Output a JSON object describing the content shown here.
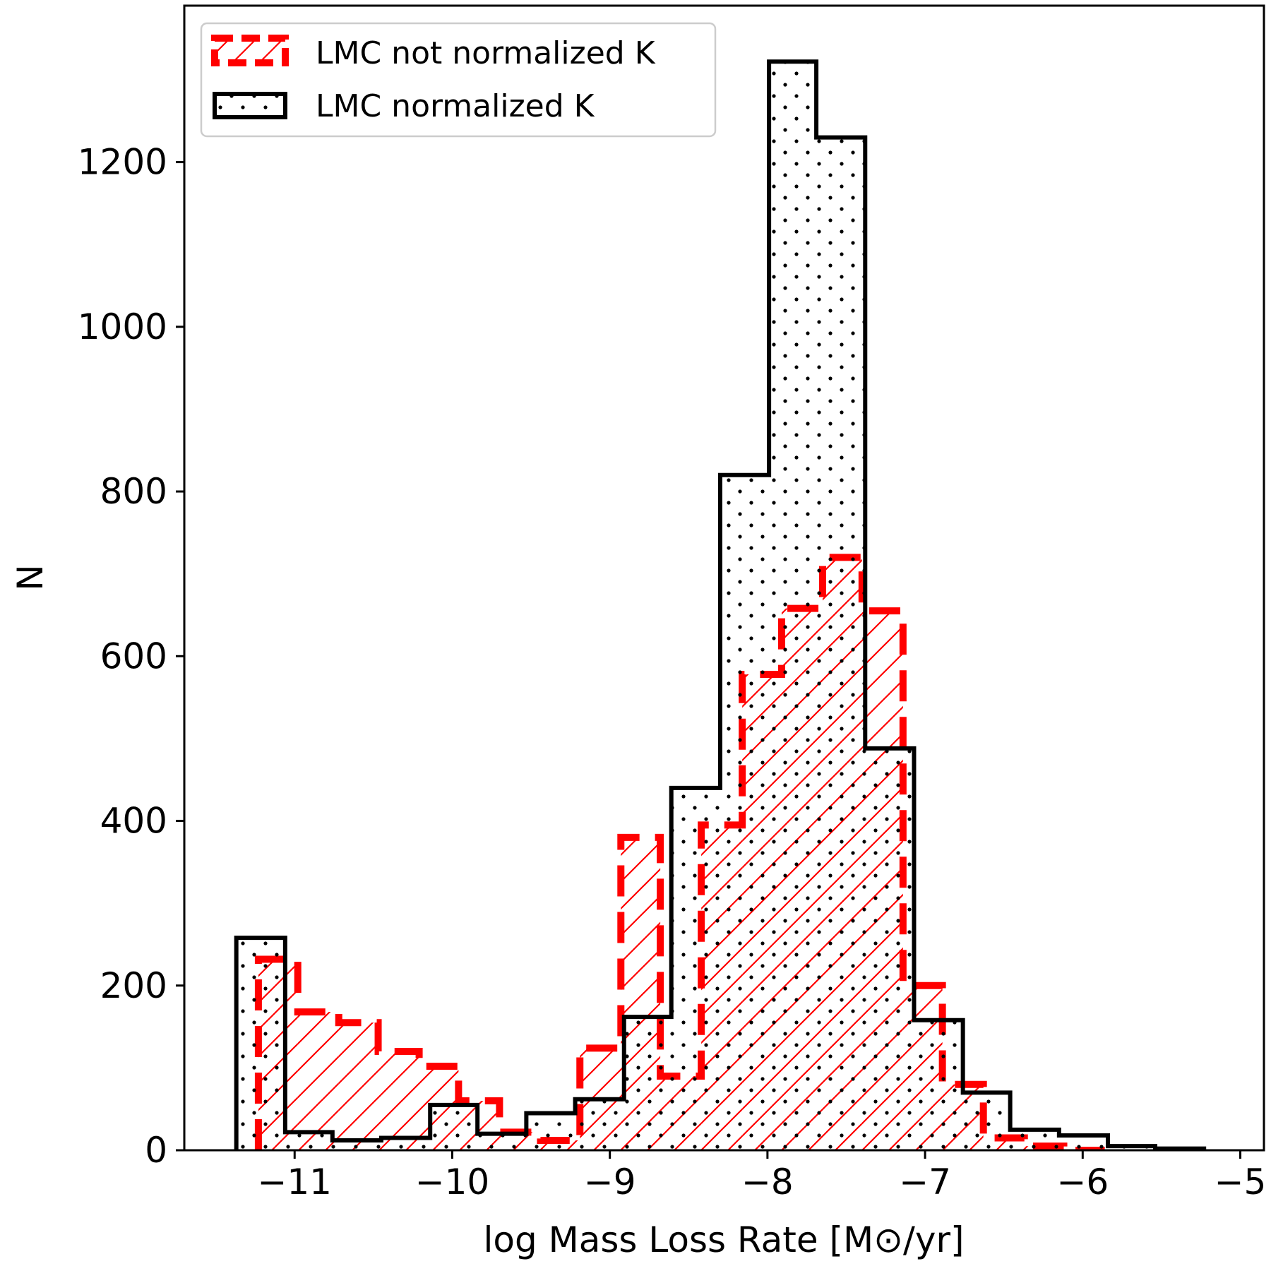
{
  "chart_data": {
    "type": "bar",
    "subtype": "step-histogram",
    "title": "",
    "xlabel": "log Mass Loss Rate [M⊙/yr]",
    "ylabel": "N",
    "xlim": [
      -11.7,
      -4.85
    ],
    "ylim": [
      0,
      1390
    ],
    "xticks": [
      -11,
      -10,
      -9,
      -8,
      -7,
      -6,
      -5
    ],
    "xtick_labels": [
      "−11",
      "−10",
      "−9",
      "−8",
      "−7",
      "−6",
      "−5"
    ],
    "yticks": [
      0,
      200,
      400,
      600,
      800,
      1000,
      1200
    ],
    "ytick_labels": [
      "0",
      "200",
      "400",
      "600",
      "800",
      "1000",
      "1200"
    ],
    "legend_position": "top-left",
    "series": [
      {
        "name": "LMC not normalized K",
        "color": "#ff0000",
        "line_style": "dashed",
        "hatch": "diagonal",
        "bin_edges": [
          -11.23,
          -10.98,
          -10.72,
          -10.47,
          -10.21,
          -9.96,
          -9.7,
          -9.44,
          -9.19,
          -8.93,
          -8.68,
          -8.42,
          -8.16,
          -7.91,
          -7.65,
          -7.4,
          -7.14,
          -6.89,
          -6.63,
          -6.37,
          -6.12,
          -5.86
        ],
        "values": [
          232,
          168,
          155,
          120,
          102,
          60,
          22,
          12,
          124,
          380,
          90,
          395,
          578,
          658,
          720,
          655,
          200,
          80,
          15,
          5,
          0
        ]
      },
      {
        "name": "LMC normalized K",
        "color": "#000000",
        "line_style": "solid",
        "hatch": "dots",
        "bin_edges": [
          -11.37,
          -11.06,
          -10.76,
          -10.45,
          -10.14,
          -9.84,
          -9.53,
          -9.22,
          -8.91,
          -8.61,
          -8.3,
          -7.99,
          -7.69,
          -7.38,
          -7.07,
          -6.76,
          -6.46,
          -6.15,
          -5.84,
          -5.54,
          -5.23
        ],
        "values": [
          258,
          22,
          12,
          15,
          55,
          20,
          45,
          62,
          162,
          440,
          820,
          1322,
          1230,
          488,
          158,
          70,
          25,
          18,
          5,
          2
        ]
      }
    ]
  }
}
